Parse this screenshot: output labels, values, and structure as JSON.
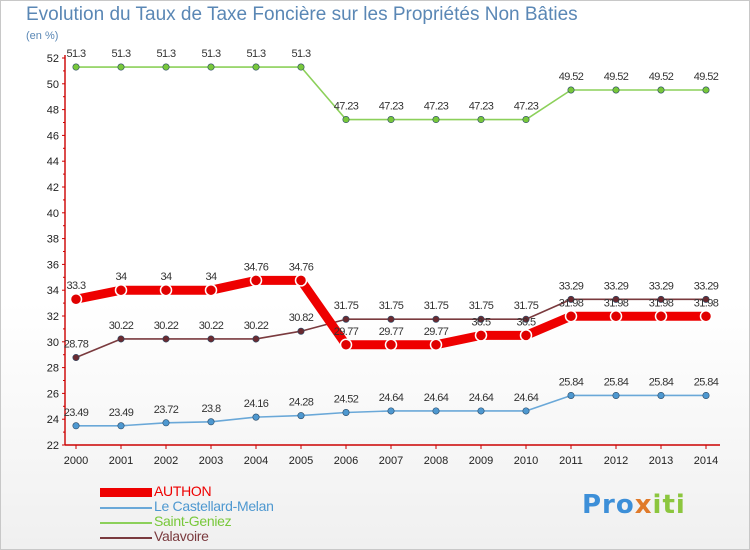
{
  "title": "Evolution du Taux de Taxe Foncière sur les Propriétés Non Bâties",
  "unit_label": "(en %)",
  "logo": {
    "part1": "Pro",
    "part2": "x",
    "part3": "iti"
  },
  "chart_data": {
    "type": "line",
    "title": "Evolution du Taux de Taxe Foncière sur les Propriétés Non Bâties",
    "ylabel": "(en %)",
    "xlabel": "",
    "ylim": [
      22,
      52
    ],
    "yticks": [
      22,
      24,
      26,
      28,
      30,
      32,
      34,
      36,
      38,
      40,
      42,
      44,
      46,
      48,
      50,
      52
    ],
    "categories": [
      "2000",
      "2001",
      "2002",
      "2003",
      "2004",
      "2005",
      "2006",
      "2007",
      "2008",
      "2009",
      "2010",
      "2011",
      "2012",
      "2013",
      "2014"
    ],
    "series": [
      {
        "name": "Saint-Geniez",
        "color": "#8cd05a",
        "marker_color": "#78c83a",
        "values": [
          51.3,
          51.3,
          51.3,
          51.3,
          51.3,
          51.3,
          47.23,
          47.23,
          47.23,
          47.23,
          47.23,
          49.52,
          49.52,
          49.52,
          49.52
        ],
        "labels": [
          "51.3",
          "51.3",
          "51.3",
          "51.3",
          "51.3",
          "51.3",
          "47.23",
          "47.23",
          "47.23",
          "47.23",
          "47.23",
          "49.52",
          "49.52",
          "49.52",
          "49.52"
        ]
      },
      {
        "name": "Le Castellard-Melan",
        "color": "#6aa8d8",
        "marker_color": "#4e98d0",
        "values": [
          23.49,
          23.49,
          23.72,
          23.8,
          24.16,
          24.28,
          24.52,
          24.64,
          24.64,
          24.64,
          24.64,
          25.84,
          25.84,
          25.84,
          25.84
        ],
        "labels": [
          "23.49",
          "23.49",
          "23.72",
          "23.8",
          "24.16",
          "24.28",
          "24.52",
          "24.64",
          "24.64",
          "24.64",
          "24.64",
          "25.84",
          "25.84",
          "25.84",
          "25.84"
        ]
      },
      {
        "name": "Valavoire",
        "color": "#7a3a3e",
        "marker_color": "#6a2a30",
        "values": [
          28.78,
          30.22,
          30.22,
          30.22,
          30.22,
          30.82,
          31.75,
          31.75,
          31.75,
          31.75,
          31.75,
          33.29,
          33.29,
          33.29,
          33.29
        ],
        "labels": [
          "28.78",
          "30.22",
          "30.22",
          "30.22",
          "30.22",
          "30.82",
          "31.75",
          "31.75",
          "31.75",
          "31.75",
          "31.75",
          "33.29",
          "33.29",
          "33.29",
          "33.29"
        ]
      },
      {
        "name": "AUTHON",
        "color": "#ee0000",
        "marker_color": "#e00000",
        "values": [
          33.3,
          34,
          34,
          34,
          34.76,
          34.76,
          29.77,
          29.77,
          29.77,
          30.5,
          30.5,
          31.98,
          31.98,
          31.98,
          31.98
        ],
        "labels": [
          "33.3",
          "34",
          "34",
          "34",
          "34.76",
          "34.76",
          "29.77",
          "29.77",
          "29.77",
          "30.5",
          "30.5",
          "31.98",
          "31.98",
          "31.98",
          "31.98"
        ]
      }
    ],
    "legend": [
      "AUTHON",
      "Le Castellard-Melan",
      "Saint-Geniez",
      "Valavoire"
    ],
    "legend_position": "bottom-left",
    "grid": false
  }
}
